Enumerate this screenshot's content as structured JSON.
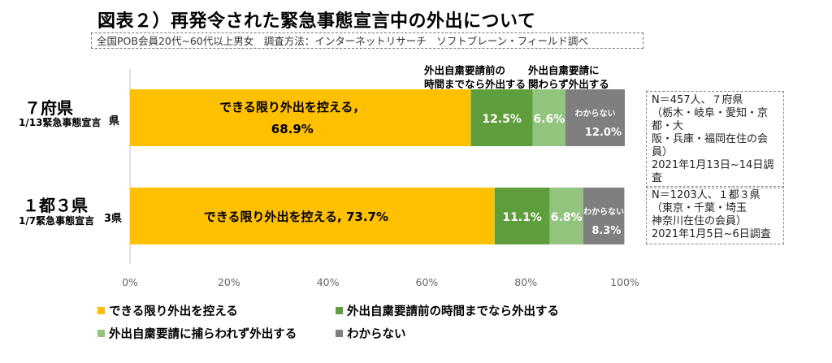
{
  "title": "図表２）再発令された緊急事態宣言中の外出について",
  "subtitle": "全国POB会員20代~60代以上男女　調査方法：インターネットリサーチ　ソフトブレーン・フィールド調べ",
  "rows": [
    {
      "title": "７府県",
      "sub": "1/13緊急事態宣言",
      "clipped_category": "県",
      "note": [
        "N＝457人、７府県",
        "（栃木・岐阜・愛知・京都・大",
        "阪・兵庫・福岡在住の会員）",
        "2021年1月13日~14日調査"
      ]
    },
    {
      "title": "１都３県",
      "sub": "1/7緊急事態宣言",
      "clipped_category": "3県",
      "note": [
        "N＝1203人、１都３県",
        "（東京・千葉・埼玉",
        "神奈川在住の会員）",
        "2021年1月5日~6日調査"
      ]
    }
  ],
  "top_annotations": [
    [
      "外出自粛要請前の",
      "時間までなら外出する"
    ],
    [
      "外出自粛要請に",
      "関わらず外出する"
    ]
  ],
  "chart_data": {
    "type": "bar",
    "orientation": "horizontal",
    "stacked": true,
    "categories": [
      "7府県",
      "1都3県"
    ],
    "xlim": [
      0,
      100
    ],
    "x_ticks": [
      "0%",
      "20%",
      "40%",
      "60%",
      "80%",
      "100%"
    ],
    "grid": false,
    "legend_position": "bottom",
    "series": [
      {
        "name": "できる限り外出を控える",
        "color": "#FFC000",
        "values": [
          68.9,
          73.7
        ]
      },
      {
        "name": "外出自粛要請前の時間までなら外出する",
        "color": "#5F9E3C",
        "values": [
          12.5,
          11.1
        ]
      },
      {
        "name": "外出自粛要請に捕らわれず外出する",
        "color": "#92C47E",
        "values": [
          6.6,
          6.8
        ]
      },
      {
        "name": "わからない",
        "color": "#7F7F7F",
        "values": [
          12.0,
          8.3
        ]
      }
    ],
    "data_labels": [
      [
        [
          "できる限り外出を控える，",
          "68.9%"
        ],
        [
          "12.5%"
        ],
        [
          "6.6%"
        ],
        [
          "わからない",
          "12.0%"
        ]
      ],
      [
        [
          "できる限り外出を控える, 73.7%"
        ],
        [
          "11.1%"
        ],
        [
          "6.8%"
        ],
        [
          "わからない",
          "8.3%"
        ]
      ]
    ]
  }
}
